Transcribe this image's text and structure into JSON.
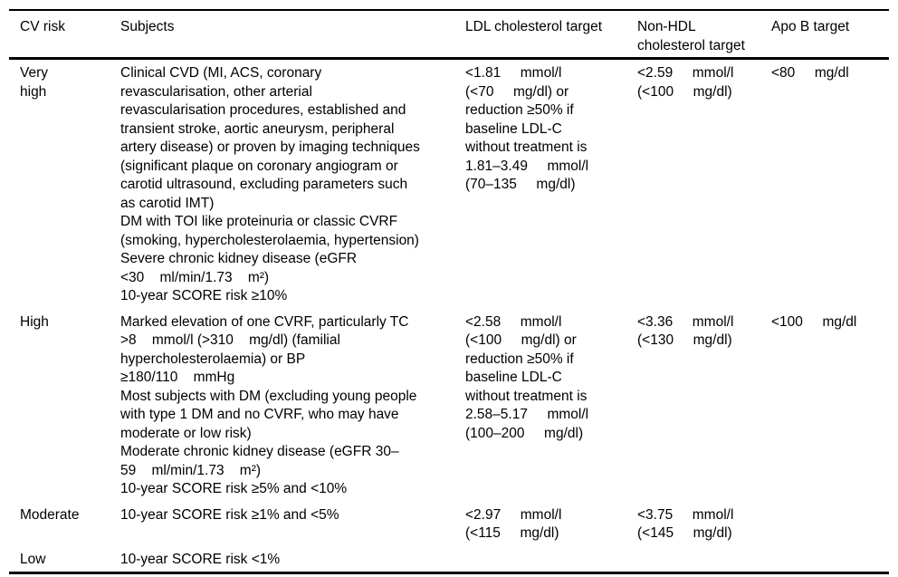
{
  "page": {
    "background_color": "#ffffff",
    "text_color": "#000000",
    "rule_color": "#000000"
  },
  "table": {
    "columns": [
      {
        "label": "CV risk"
      },
      {
        "label": "Subjects"
      },
      {
        "label": "LDL cholesterol target"
      },
      {
        "label": "Non-HDL\ncholesterol target"
      },
      {
        "label": "Apo B target"
      }
    ],
    "rows": [
      {
        "risk": "Very\nhigh",
        "subjects": "Clinical CVD (MI, ACS, coronary\nrevascularisation, other arterial\nrevascularisation procedures, established and\ntransient stroke, aortic aneurysm, peripheral\nartery disease) or proven by imaging techniques\n(significant plaque on coronary angiogram or\ncarotid ultrasound, excluding parameters such\nas carotid IMT)\nDM with TOI like proteinuria or classic CVRF\n(smoking, hypercholesterolaemia, hypertension)\nSevere chronic kidney disease (eGFR\n<30    ml/min/1.73    m²)\n10-year SCORE risk ≥10%",
        "ldl": "<1.81     mmol/l\n(<70     mg/dl) or\nreduction ≥50% if\nbaseline LDL-C\nwithout treatment is\n1.81–3.49     mmol/l\n(70–135     mg/dl)",
        "nonhdl": "<2.59     mmol/l\n(<100     mg/dl)",
        "apob": "<80     mg/dl"
      },
      {
        "risk": "High",
        "subjects": "Marked elevation of one CVRF, particularly TC\n>8    mmol/l (>310    mg/dl) (familial\nhypercholesterolaemia) or BP\n≥180/110    mmHg\nMost subjects with DM (excluding young people\nwith type 1 DM and no CVRF, who may have\nmoderate or low risk)\nModerate chronic kidney disease (eGFR 30–\n59    ml/min/1.73    m²)\n10-year SCORE risk ≥5% and <10%",
        "ldl": "<2.58     mmol/l\n(<100     mg/dl) or\nreduction ≥50% if\nbaseline LDL-C\nwithout treatment is\n2.58–5.17     mmol/l\n(100–200     mg/dl)",
        "nonhdl": "<3.36     mmol/l\n(<130     mg/dl)",
        "apob": "<100     mg/dl"
      },
      {
        "risk": "Moderate",
        "subjects": "10-year SCORE risk ≥1% and <5%",
        "ldl": "<2.97     mmol/l\n(<115     mg/dl)",
        "nonhdl": "<3.75     mmol/l\n(<145     mg/dl)",
        "apob": ""
      },
      {
        "risk": "Low",
        "subjects": "10-year SCORE risk <1%",
        "ldl": "",
        "nonhdl": "",
        "apob": ""
      }
    ]
  }
}
